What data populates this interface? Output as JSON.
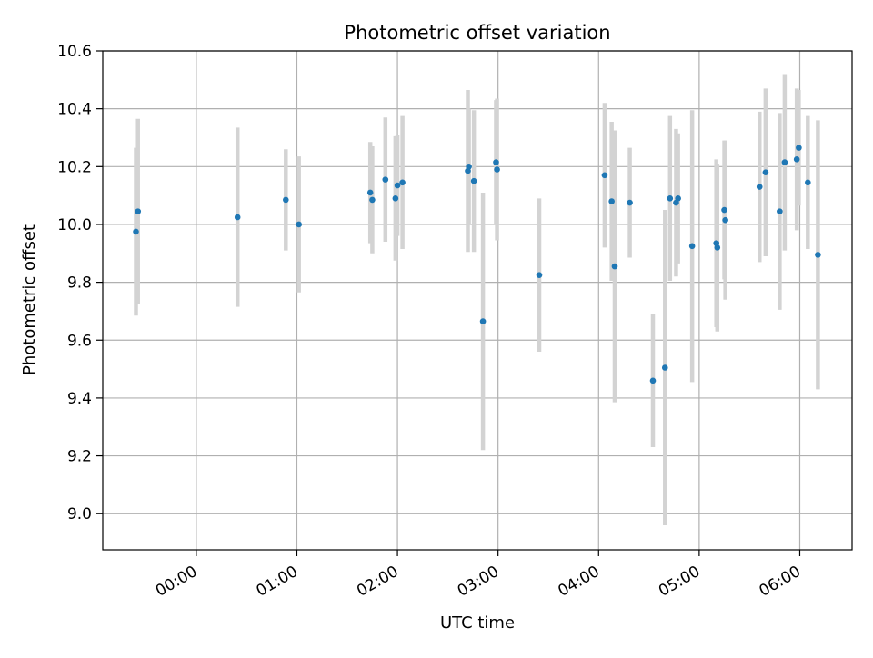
{
  "chart_data": {
    "type": "scatter",
    "title": "Photometric offset variation",
    "xlabel": "UTC time",
    "ylabel": "Photometric offset",
    "x_unit": "hours UTC",
    "xlim": [
      -0.93,
      6.52
    ],
    "ylim": [
      8.875,
      10.6
    ],
    "x_ticks": [
      {
        "x": 0,
        "label": "00:00"
      },
      {
        "x": 1,
        "label": "01:00"
      },
      {
        "x": 2,
        "label": "02:00"
      },
      {
        "x": 3,
        "label": "03:00"
      },
      {
        "x": 4,
        "label": "04:00"
      },
      {
        "x": 5,
        "label": "05:00"
      },
      {
        "x": 6,
        "label": "06:00"
      }
    ],
    "y_ticks": [
      {
        "y": 9.0,
        "label": "9.0"
      },
      {
        "y": 9.2,
        "label": "9.2"
      },
      {
        "y": 9.4,
        "label": "9.4"
      },
      {
        "y": 9.6,
        "label": "9.6"
      },
      {
        "y": 9.8,
        "label": "9.8"
      },
      {
        "y": 10.0,
        "label": "10.0"
      },
      {
        "y": 10.2,
        "label": "10.2"
      },
      {
        "y": 10.4,
        "label": "10.4"
      },
      {
        "y": 10.6,
        "label": "10.6"
      }
    ],
    "grid": true,
    "colors": {
      "marker": "#1f77b4",
      "errorbar": "#d3d3d3",
      "grid": "#b0b0b0"
    },
    "series": [
      {
        "points": [
          {
            "x": -0.6,
            "y": 9.975,
            "err": 0.29
          },
          {
            "x": -0.58,
            "y": 10.045,
            "err": 0.32
          },
          {
            "x": 0.41,
            "y": 10.025,
            "err": 0.31
          },
          {
            "x": 0.89,
            "y": 10.085,
            "err": 0.175
          },
          {
            "x": 1.02,
            "y": 10.0,
            "err": 0.235
          },
          {
            "x": 1.73,
            "y": 10.11,
            "err": 0.175
          },
          {
            "x": 1.75,
            "y": 10.085,
            "err": 0.185
          },
          {
            "x": 1.88,
            "y": 10.155,
            "err": 0.215
          },
          {
            "x": 1.98,
            "y": 10.09,
            "err": 0.215
          },
          {
            "x": 2.0,
            "y": 10.135,
            "err": 0.175
          },
          {
            "x": 2.05,
            "y": 10.145,
            "err": 0.23
          },
          {
            "x": 2.7,
            "y": 10.185,
            "err": 0.28
          },
          {
            "x": 2.71,
            "y": 10.2,
            "err": 0.2
          },
          {
            "x": 2.76,
            "y": 10.15,
            "err": 0.245
          },
          {
            "x": 2.85,
            "y": 9.665,
            "err": 0.445
          },
          {
            "x": 2.98,
            "y": 10.215,
            "err": 0.215
          },
          {
            "x": 2.99,
            "y": 10.19,
            "err": 0.245
          },
          {
            "x": 3.41,
            "y": 9.825,
            "err": 0.265
          },
          {
            "x": 4.06,
            "y": 10.17,
            "err": 0.25
          },
          {
            "x": 4.13,
            "y": 10.08,
            "err": 0.275
          },
          {
            "x": 4.16,
            "y": 9.855,
            "err": 0.47
          },
          {
            "x": 4.31,
            "y": 10.075,
            "err": 0.19
          },
          {
            "x": 4.54,
            "y": 9.46,
            "err": 0.23
          },
          {
            "x": 4.66,
            "y": 9.505,
            "err": 0.545
          },
          {
            "x": 4.71,
            "y": 10.09,
            "err": 0.285
          },
          {
            "x": 4.77,
            "y": 10.075,
            "err": 0.255
          },
          {
            "x": 4.79,
            "y": 10.09,
            "err": 0.225
          },
          {
            "x": 4.93,
            "y": 9.925,
            "err": 0.47
          },
          {
            "x": 5.17,
            "y": 9.935,
            "err": 0.29
          },
          {
            "x": 5.18,
            "y": 9.92,
            "err": 0.29
          },
          {
            "x": 5.25,
            "y": 10.05,
            "err": 0.24
          },
          {
            "x": 5.26,
            "y": 10.015,
            "err": 0.275
          },
          {
            "x": 5.6,
            "y": 10.13,
            "err": 0.26
          },
          {
            "x": 5.66,
            "y": 10.18,
            "err": 0.29
          },
          {
            "x": 5.8,
            "y": 10.045,
            "err": 0.34
          },
          {
            "x": 5.85,
            "y": 10.215,
            "err": 0.305
          },
          {
            "x": 5.97,
            "y": 10.225,
            "err": 0.245
          },
          {
            "x": 5.99,
            "y": 10.265,
            "err": 0.2
          },
          {
            "x": 6.08,
            "y": 10.145,
            "err": 0.23
          },
          {
            "x": 6.18,
            "y": 9.895,
            "err": 0.465
          }
        ]
      }
    ]
  }
}
